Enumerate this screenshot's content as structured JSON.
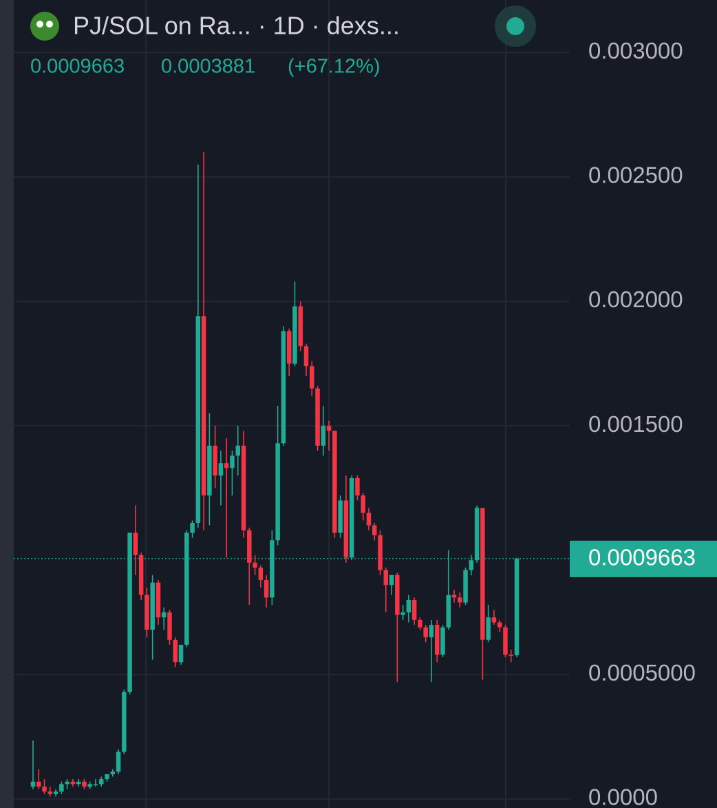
{
  "chart_data": {
    "type": "candlestick",
    "title": "PJ/SOL on Ra... · 1D · dexs...",
    "open": [
      5e-05,
      7e-05,
      5e-05,
      3e-05,
      2e-05,
      3e-05,
      6e-05,
      7e-05,
      6e-05,
      7e-05,
      5e-05,
      6e-05,
      6e-05,
      8e-05,
      0.0001,
      0.00011,
      0.00019,
      0.00043,
      0.00107,
      0.00098,
      0.00082,
      0.00068,
      0.00087,
      0.00073,
      0.00075,
      0.00064,
      0.00055,
      0.00062,
      0.00107,
      0.00111,
      0.00194,
      0.00122,
      0.00142,
      0.0013,
      0.00135,
      0.00133,
      0.00138,
      0.00142,
      0.00108,
      0.00095,
      0.00093,
      0.00088,
      0.00081,
      0.00104,
      0.00143,
      0.00188,
      0.00175,
      0.00198,
      0.00182,
      0.00174,
      0.00165,
      0.00142,
      0.0015,
      0.00148,
      0.00107,
      0.0012,
      0.00097,
      0.00129,
      0.00122,
      0.00115,
      0.0011,
      0.00106,
      0.00092,
      0.00086,
      0.0009,
      0.00074,
      0.00075,
      0.0008,
      0.00072,
      0.00069,
      0.00065,
      0.0007,
      0.00058,
      0.00069,
      0.00082,
      0.00081,
      0.00079,
      0.00092,
      0.00096,
      0.00117,
      0.00064,
      0.00073,
      0.00071,
      0.00069,
      0.00058,
      0.0005782
    ],
    "high": [
      0.000235,
      0.00012,
      8e-05,
      5e-05,
      4e-05,
      7e-05,
      8e-05,
      8e-05,
      8e-05,
      8e-05,
      7e-05,
      8e-05,
      9e-05,
      0.0001,
      0.00012,
      0.0002,
      0.00044,
      0.00107,
      0.00118,
      0.00099,
      0.00085,
      0.0009,
      0.00088,
      0.00077,
      0.00076,
      0.00065,
      0.00062,
      0.00108,
      0.00112,
      0.00255,
      0.0026,
      0.00155,
      0.0015,
      0.0014,
      0.00145,
      0.0014,
      0.0015,
      0.00148,
      0.00109,
      0.00098,
      0.00094,
      0.0009,
      0.00108,
      0.00158,
      0.0019,
      0.00189,
      0.00208,
      0.002,
      0.00183,
      0.00176,
      0.00166,
      0.00158,
      0.00152,
      0.00148,
      0.00122,
      0.0013,
      0.0013,
      0.0013,
      0.00123,
      0.00117,
      0.00111,
      0.00108,
      0.00093,
      0.0009,
      0.00091,
      0.00078,
      0.00082,
      0.00081,
      0.00073,
      0.0007,
      0.00072,
      0.00072,
      0.0007,
      0.001,
      0.00084,
      0.00083,
      0.00093,
      0.00098,
      0.00118,
      0.00117,
      0.00078,
      0.00076,
      0.00072,
      0.0007,
      0.0006,
      0.00097
    ],
    "low": [
      4e-05,
      4e-05,
      2e-05,
      1e-05,
      1e-05,
      2e-05,
      4e-05,
      5e-05,
      5e-05,
      4e-05,
      4e-05,
      5e-05,
      5e-05,
      7e-05,
      9e-05,
      0.0001,
      0.00018,
      0.00042,
      0.0009,
      0.0008,
      0.00065,
      0.00056,
      0.0007,
      0.00068,
      0.00062,
      0.00053,
      0.00054,
      0.00061,
      0.00105,
      0.00109,
      0.00108,
      0.0011,
      0.00125,
      0.00118,
      0.00097,
      0.00122,
      0.0013,
      0.00105,
      0.00078,
      0.0009,
      0.00085,
      0.00077,
      0.00078,
      0.00102,
      0.00142,
      0.0017,
      0.00174,
      0.0018,
      0.0017,
      0.00162,
      0.0014,
      0.00138,
      0.0014,
      0.00105,
      0.00105,
      0.00095,
      0.00096,
      0.0012,
      0.00112,
      0.00108,
      0.00104,
      0.0009,
      0.00075,
      0.00082,
      0.00047,
      0.00072,
      0.00071,
      0.0007,
      0.00068,
      0.00063,
      0.00047,
      0.00055,
      0.00057,
      0.00068,
      0.00079,
      0.00077,
      0.00078,
      0.0009,
      0.00095,
      0.00048,
      0.00063,
      0.0007,
      0.00067,
      0.00057,
      0.00055,
      0.00057
    ],
    "close": [
      7e-05,
      5e-05,
      3e-05,
      2e-05,
      3e-05,
      6e-05,
      7e-05,
      6e-05,
      7e-05,
      5e-05,
      6e-05,
      6e-05,
      8e-05,
      0.0001,
      0.00011,
      0.00019,
      0.00043,
      0.00107,
      0.00098,
      0.00082,
      0.00068,
      0.00087,
      0.00073,
      0.00075,
      0.00064,
      0.00055,
      0.00062,
      0.00107,
      0.00111,
      0.00194,
      0.00122,
      0.00142,
      0.0013,
      0.00135,
      0.00133,
      0.00138,
      0.00142,
      0.00108,
      0.00095,
      0.00093,
      0.00088,
      0.00081,
      0.00104,
      0.00143,
      0.00188,
      0.00175,
      0.00198,
      0.00182,
      0.00174,
      0.00165,
      0.00142,
      0.0015,
      0.00148,
      0.00107,
      0.0012,
      0.00097,
      0.00129,
      0.00122,
      0.00115,
      0.0011,
      0.00106,
      0.00092,
      0.00086,
      0.0009,
      0.00074,
      0.00075,
      0.0008,
      0.00072,
      0.00069,
      0.00065,
      0.0007,
      0.00058,
      0.00069,
      0.00082,
      0.00081,
      0.00079,
      0.00092,
      0.00096,
      0.00117,
      0.00064,
      0.00073,
      0.00071,
      0.00069,
      0.00058,
      0.0005782,
      0.0009663
    ],
    "up_color": "#22ab94",
    "down_color": "#f23645",
    "change": 0.0003881,
    "change_percent": {
      "value": 67.12,
      "label": "(+67.12%)"
    },
    "ylim": [
      -3.6e-05,
      0.003211
    ],
    "yticks": [
      {
        "value": 0,
        "label": "0.0000"
      },
      {
        "value": 0.0005,
        "label": "0.0005000"
      },
      {
        "value": 0.0015,
        "label": "0.001500"
      },
      {
        "value": 0.002,
        "label": "0.002000"
      },
      {
        "value": 0.0025,
        "label": "0.002500"
      },
      {
        "value": 0.003,
        "label": "0.003000"
      }
    ],
    "grid": true
  }
}
